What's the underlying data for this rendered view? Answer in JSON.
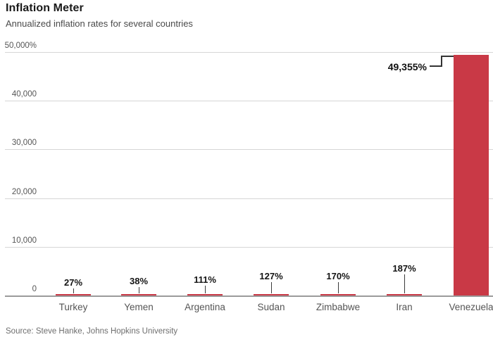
{
  "header": {
    "title": "Inflation Meter",
    "subtitle": "Annualized inflation rates for several countries"
  },
  "source_note": "Source: Steve Hanke, Johns Hopkins University",
  "colors": {
    "bar": "#c93946",
    "grid": "#d6d6d6",
    "baseline": "#9b9b9b",
    "value_text": "#141414",
    "axis_text": "#555555"
  },
  "chart_data": {
    "type": "bar",
    "title": "Inflation Meter",
    "subtitle": "Annualized inflation rates for several countries",
    "categories": [
      "Turkey",
      "Yemen",
      "Argentina",
      "Sudan",
      "Zimbabwe",
      "Iran",
      "Venezuela"
    ],
    "values": [
      27,
      38,
      111,
      127,
      170,
      187,
      49355
    ],
    "value_labels": [
      "27%",
      "38%",
      "111%",
      "127%",
      "170%",
      "187%",
      "49,355%"
    ],
    "annotated_bar": "Venezuela",
    "annotation_label": "49,355%",
    "xlabel": "",
    "ylabel": "",
    "ylim": [
      0,
      50000
    ],
    "yticks": [
      0,
      10000,
      20000,
      30000,
      40000,
      50000
    ],
    "ytick_labels": [
      "0",
      "10,000",
      "20,000",
      "30,000",
      "40,000",
      "50,000%"
    ],
    "grid": "horizontal-only",
    "legend": "none",
    "bar_color": "#c93946"
  }
}
